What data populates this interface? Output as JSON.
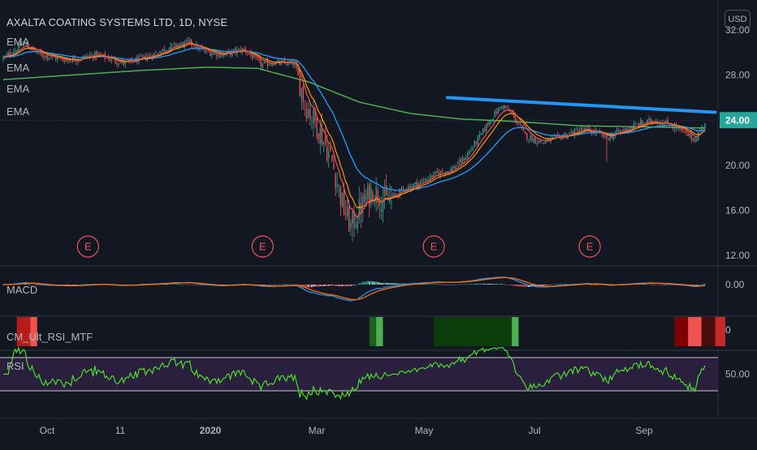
{
  "title": "AXALTA COATING SYSTEMS LTD, 1D, NYSE",
  "currency_button": "USD",
  "price_tag": "24.00",
  "studies": {
    "ema1": "EMA",
    "ema2": "EMA",
    "ema3": "EMA",
    "ema4": "EMA",
    "macd": "MACD",
    "cm_rsi": "CM_Ult_RSI_MTF",
    "rsi": "RSI"
  },
  "earnings_marker": "E",
  "colors": {
    "background": "#131722",
    "up": "#26a69a",
    "down": "#ef5350",
    "ema_fast": "#ef5350",
    "ema_mid": "#ff9800",
    "ema_slow": "#2196f3",
    "ema_long": "#4caf50",
    "trendline": "#2196f3",
    "rsi_line": "#4cdc2c",
    "rsi_band": "#2a1f3d",
    "price_tag": "#26a69a"
  },
  "chart_data": [
    {
      "type": "candlestick",
      "title": "AXALTA COATING SYSTEMS LTD, 1D, NYSE",
      "y_ticks": [
        "32.00",
        "28.00",
        "24.00",
        "20.00",
        "16.00",
        "12.00"
      ],
      "ylim": [
        11.0,
        33.0
      ],
      "x_ticks": [
        "Oct",
        "11",
        "2020",
        "Mar",
        "May",
        "Jul",
        "Sep"
      ],
      "price_path": [
        {
          "t": 0,
          "p": 29.5
        },
        {
          "t": 12,
          "p": 30.8
        },
        {
          "t": 22,
          "p": 29.8
        },
        {
          "t": 38,
          "p": 29.3
        },
        {
          "t": 55,
          "p": 29.8
        },
        {
          "t": 72,
          "p": 29.0
        },
        {
          "t": 88,
          "p": 29.8
        },
        {
          "t": 98,
          "p": 30.5
        },
        {
          "t": 110,
          "p": 30.9
        },
        {
          "t": 118,
          "p": 30.1
        },
        {
          "t": 130,
          "p": 29.8
        },
        {
          "t": 142,
          "p": 30.3
        },
        {
          "t": 152,
          "p": 28.9
        },
        {
          "t": 160,
          "p": 29.1
        },
        {
          "t": 172,
          "p": 29.0
        },
        {
          "t": 178,
          "p": 25.5
        },
        {
          "t": 186,
          "p": 23.3
        },
        {
          "t": 194,
          "p": 20.3
        },
        {
          "t": 200,
          "p": 16.6
        },
        {
          "t": 205,
          "p": 14.5
        },
        {
          "t": 211,
          "p": 16.3
        },
        {
          "t": 218,
          "p": 17.8
        },
        {
          "t": 226,
          "p": 16.8
        },
        {
          "t": 236,
          "p": 17.9
        },
        {
          "t": 246,
          "p": 18.5
        },
        {
          "t": 256,
          "p": 19.3
        },
        {
          "t": 264,
          "p": 19.6
        },
        {
          "t": 272,
          "p": 20.6
        },
        {
          "t": 280,
          "p": 22.3
        },
        {
          "t": 288,
          "p": 24.2
        },
        {
          "t": 294,
          "p": 25.3
        },
        {
          "t": 300,
          "p": 24.6
        },
        {
          "t": 308,
          "p": 22.6
        },
        {
          "t": 318,
          "p": 22.0
        },
        {
          "t": 330,
          "p": 22.6
        },
        {
          "t": 342,
          "p": 23.2
        },
        {
          "t": 350,
          "p": 22.9
        },
        {
          "t": 356,
          "p": 22.4
        },
        {
          "t": 364,
          "p": 23.0
        },
        {
          "t": 374,
          "p": 23.6
        },
        {
          "t": 384,
          "p": 24.0
        },
        {
          "t": 394,
          "p": 23.6
        },
        {
          "t": 402,
          "p": 22.8
        },
        {
          "t": 408,
          "p": 22.3
        },
        {
          "t": 414,
          "p": 23.8
        }
      ],
      "ema_long_path": [
        {
          "t": 0,
          "p": 27.6
        },
        {
          "t": 40,
          "p": 28.0
        },
        {
          "t": 80,
          "p": 28.4
        },
        {
          "t": 120,
          "p": 28.7
        },
        {
          "t": 150,
          "p": 28.6
        },
        {
          "t": 180,
          "p": 27.4
        },
        {
          "t": 210,
          "p": 25.6
        },
        {
          "t": 240,
          "p": 24.6
        },
        {
          "t": 270,
          "p": 24.1
        },
        {
          "t": 300,
          "p": 23.9
        },
        {
          "t": 340,
          "p": 23.5
        },
        {
          "t": 380,
          "p": 23.4
        },
        {
          "t": 414,
          "p": 23.3
        }
      ],
      "trendline": [
        {
          "t": 262,
          "p": 26.0
        },
        {
          "t": 420,
          "p": 24.7
        }
      ],
      "earnings_days": [
        50,
        153,
        254,
        346
      ]
    },
    {
      "type": "histogram+line",
      "name": "MACD",
      "y_ticks": [
        "0.00"
      ]
    },
    {
      "type": "column-markers",
      "name": "CM_Ult_RSI_MTF",
      "y_ticks": [
        "0"
      ]
    },
    {
      "type": "line",
      "name": "RSI",
      "y_ticks": [
        "50.00"
      ],
      "band": [
        30,
        70
      ]
    }
  ]
}
